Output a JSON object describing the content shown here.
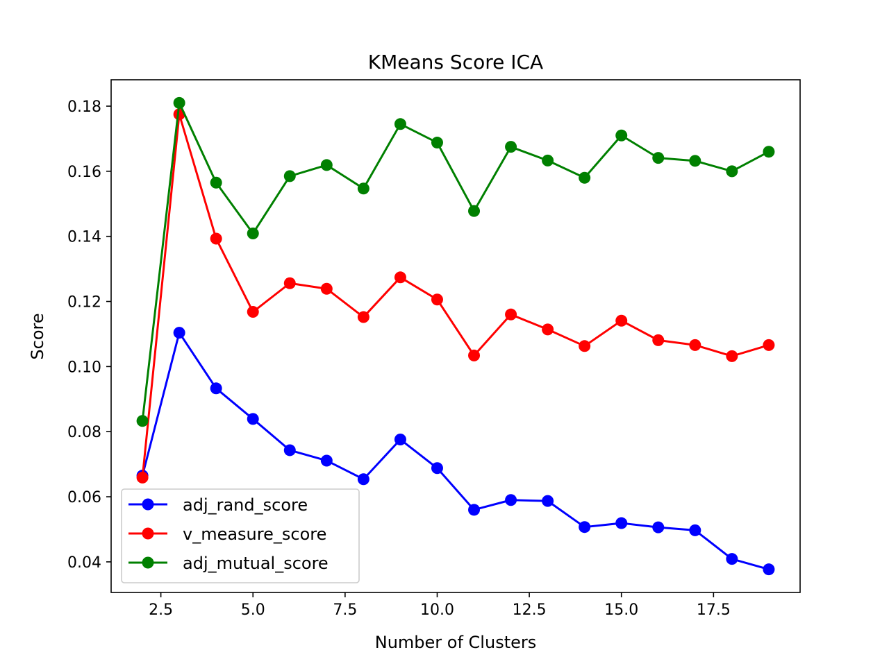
{
  "chart_data": {
    "type": "line",
    "title": "KMeans Score ICA",
    "xlabel": "Number of Clusters",
    "ylabel": "Score",
    "xlim": [
      1.15,
      19.85
    ],
    "ylim": [
      0.0306,
      0.1881
    ],
    "xticks": [
      2.5,
      5.0,
      7.5,
      10.0,
      12.5,
      15.0,
      17.5
    ],
    "xtick_labels": [
      "2.5",
      "5.0",
      "7.5",
      "10.0",
      "12.5",
      "15.0",
      "17.5"
    ],
    "yticks": [
      0.04,
      0.06,
      0.08,
      0.1,
      0.12,
      0.14,
      0.16,
      0.18
    ],
    "ytick_labels": [
      "0.04",
      "0.06",
      "0.08",
      "0.10",
      "0.12",
      "0.14",
      "0.16",
      "0.18"
    ],
    "grid": false,
    "legend_position": "lower-left",
    "x": [
      2,
      3,
      4,
      5,
      6,
      7,
      8,
      9,
      10,
      11,
      12,
      13,
      14,
      15,
      16,
      17,
      18,
      19
    ],
    "series": [
      {
        "name": "adj_rand_score",
        "color": "#0000ff",
        "values": [
          0.0665,
          0.1104,
          0.0933,
          0.0839,
          0.0743,
          0.0711,
          0.0654,
          0.0776,
          0.0688,
          0.056,
          0.059,
          0.0587,
          0.0507,
          0.0519,
          0.0506,
          0.0497,
          0.0409,
          0.0377
        ]
      },
      {
        "name": "v_measure_score",
        "color": "#ff0000",
        "values": [
          0.0659,
          0.1775,
          0.1393,
          0.1168,
          0.1256,
          0.1239,
          0.1152,
          0.1274,
          0.1206,
          0.1034,
          0.116,
          0.1114,
          0.1063,
          0.1141,
          0.1081,
          0.1066,
          0.1032,
          0.1066
        ]
      },
      {
        "name": "adj_mutual_score",
        "color": "#008000",
        "values": [
          0.0833,
          0.181,
          0.1565,
          0.1409,
          0.1585,
          0.1619,
          0.1547,
          0.1745,
          0.1688,
          0.1478,
          0.1675,
          0.1633,
          0.158,
          0.171,
          0.1641,
          0.1632,
          0.16,
          0.166
        ]
      }
    ]
  }
}
